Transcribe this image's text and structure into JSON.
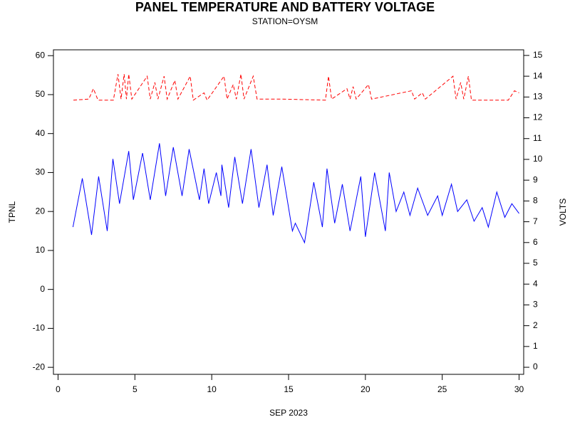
{
  "chart_data": {
    "type": "line",
    "title": "PANEL TEMPERATURE AND BATTERY VOLTAGE",
    "subtitle": "STATION=OYSM",
    "x_label": "SEP 2023",
    "y_label": "TPNL",
    "y2_label": "VOLTS",
    "xlim": [
      -0.3,
      30.3
    ],
    "xticks": [
      0,
      5,
      10,
      15,
      20,
      25,
      30
    ],
    "ylim": [
      -21.8,
      61.5
    ],
    "yticks": [
      -20,
      -10,
      0,
      10,
      20,
      30,
      40,
      50,
      60
    ],
    "y2lim": [
      -0.34,
      15.27
    ],
    "y2ticks": [
      0,
      1,
      2,
      3,
      4,
      5,
      6,
      7,
      8,
      9,
      10,
      11,
      12,
      13,
      14,
      15
    ],
    "series": [
      {
        "name": "TPNL",
        "color": "#0000ff",
        "dash": false,
        "x": [
          0.97,
          1.58,
          2.18,
          2.64,
          3.2,
          3.57,
          4.0,
          4.6,
          4.9,
          5.5,
          6.0,
          6.6,
          7.0,
          7.5,
          8.07,
          8.53,
          9.2,
          9.5,
          9.8,
          10.3,
          10.6,
          10.66,
          11.1,
          11.5,
          12.0,
          12.56,
          13.07,
          13.6,
          14.0,
          14.56,
          15.25,
          15.44,
          16.04,
          16.64,
          17.2,
          17.5,
          18.0,
          18.5,
          19.0,
          19.7,
          20.0,
          20.6,
          21.3,
          21.55,
          22.0,
          22.5,
          22.9,
          23.4,
          24.05,
          24.7,
          25.0,
          25.6,
          26.0,
          26.6,
          27.07,
          27.6,
          28.0,
          28.55,
          29.07,
          29.53,
          30.0
        ],
        "values": [
          16,
          28.5,
          14,
          29,
          15,
          33.5,
          22,
          35.5,
          23,
          35,
          23,
          37.5,
          24,
          36.5,
          24,
          36,
          23,
          31,
          22,
          30,
          24,
          32,
          21,
          34,
          22,
          36,
          21,
          32,
          19,
          31.5,
          15,
          17,
          12,
          27.5,
          16,
          31,
          17,
          27,
          15,
          29,
          13.5,
          30,
          15,
          30,
          20,
          25,
          19,
          26,
          19,
          24,
          19,
          27,
          20,
          23,
          17.5,
          21,
          16,
          25,
          18.5,
          22,
          19.5
        ]
      },
      {
        "name": "VOLTS",
        "color": "#ff0000",
        "dash": true,
        "axis": "y2",
        "x": [
          1.0,
          2.0,
          2.3,
          2.6,
          3.6,
          3.9,
          4.1,
          4.3,
          4.45,
          4.6,
          4.8,
          5.8,
          6.0,
          6.3,
          6.5,
          6.9,
          7.1,
          7.6,
          7.8,
          8.6,
          8.8,
          9.5,
          9.7,
          10.8,
          11.0,
          11.4,
          11.6,
          11.9,
          12.1,
          12.7,
          12.95,
          14.5,
          17.4,
          17.6,
          17.8,
          18.8,
          19.0,
          19.2,
          19.4,
          20.2,
          20.4,
          23.0,
          23.2,
          23.7,
          23.9,
          25.7,
          25.9,
          26.2,
          26.4,
          26.7,
          26.9,
          29.3,
          29.7,
          30.0
        ],
        "values": [
          12.85,
          12.9,
          13.4,
          12.85,
          12.85,
          14.1,
          12.9,
          14.1,
          12.9,
          14.1,
          12.9,
          14.0,
          12.9,
          13.7,
          12.9,
          14.0,
          12.9,
          13.8,
          12.9,
          14.0,
          12.85,
          13.2,
          12.85,
          14.0,
          12.9,
          13.6,
          12.9,
          14.1,
          12.9,
          14.0,
          12.9,
          12.9,
          12.85,
          14.0,
          12.9,
          13.4,
          12.9,
          13.5,
          12.9,
          13.6,
          12.9,
          13.3,
          12.9,
          13.2,
          12.9,
          14.0,
          12.9,
          13.7,
          12.9,
          14.0,
          12.85,
          12.85,
          13.3,
          13.2
        ]
      }
    ]
  }
}
